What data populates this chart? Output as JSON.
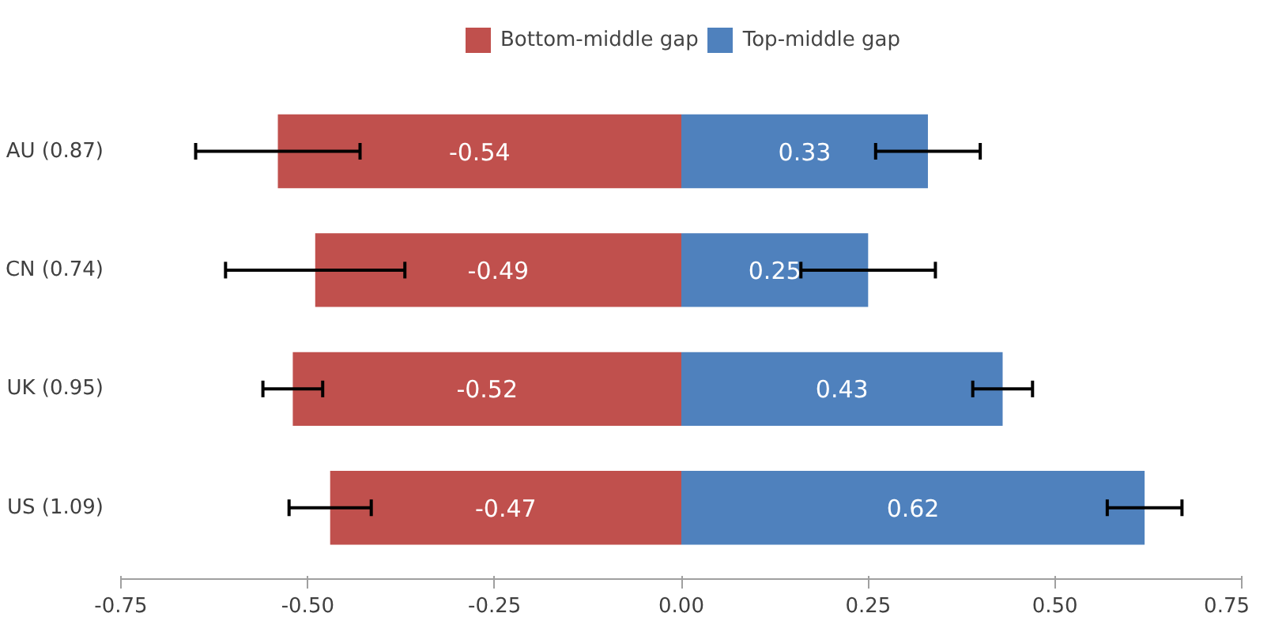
{
  "chart_data": {
    "type": "bar",
    "orientation": "horizontal",
    "stacked": true,
    "categories": [
      "AU (0.87)",
      "CN (0.74)",
      "UK (0.95)",
      "US (1.09)"
    ],
    "series": [
      {
        "name": "Bottom-middle gap",
        "color": "#c0504d",
        "values": [
          -0.54,
          -0.49,
          -0.52,
          -0.47
        ],
        "errors": [
          0.11,
          0.12,
          0.04,
          0.055
        ]
      },
      {
        "name": "Top-middle gap",
        "color": "#4f81bd",
        "values": [
          0.33,
          0.25,
          0.43,
          0.62
        ],
        "errors": [
          0.07,
          0.09,
          0.04,
          0.05
        ]
      }
    ],
    "xlim": [
      -0.75,
      0.75
    ],
    "xticks": [
      {
        "value": -0.75,
        "label": "-0.75"
      },
      {
        "value": -0.5,
        "label": "-0.50"
      },
      {
        "value": -0.25,
        "label": "-0.25"
      },
      {
        "value": 0,
        "label": "0.00"
      },
      {
        "value": 0.25,
        "label": "0.25"
      },
      {
        "value": 0.5,
        "label": "0.50"
      },
      {
        "value": 0.75,
        "label": "0.75"
      }
    ],
    "data_labels": true,
    "legend": "top",
    "grid": false
  }
}
